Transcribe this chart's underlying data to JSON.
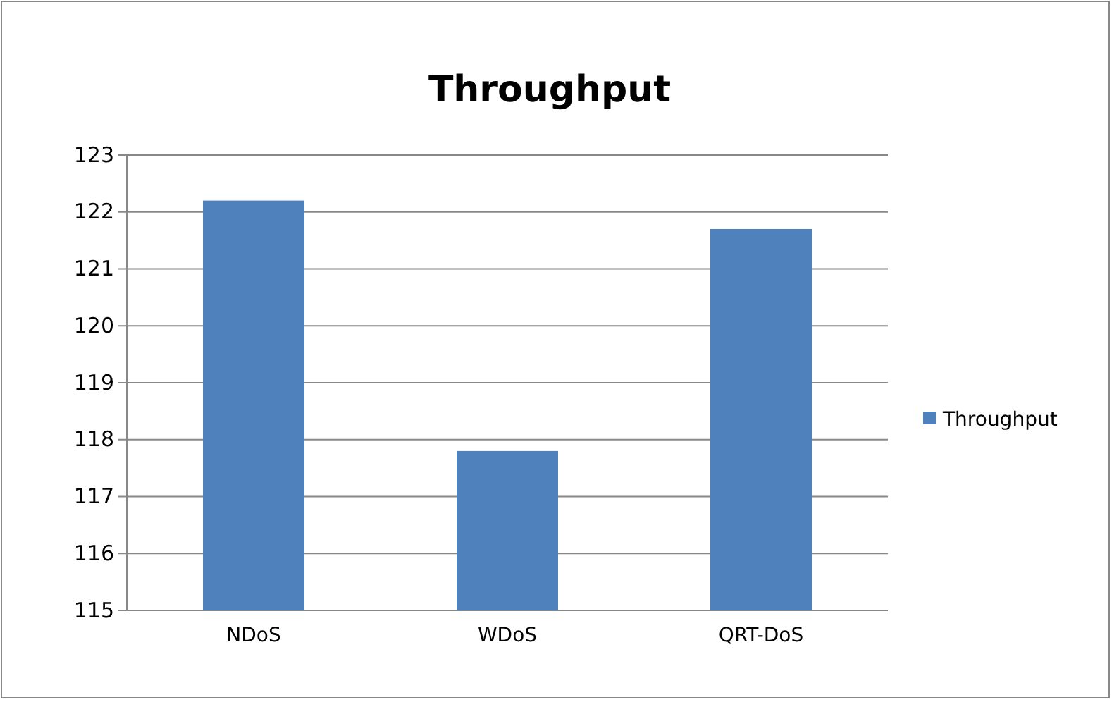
{
  "chart_data": {
    "type": "bar",
    "title": "Throughput",
    "categories": [
      "NDoS",
      "WDoS",
      "QRT-DoS"
    ],
    "series": [
      {
        "name": "Throughput",
        "color": "#4f81bd",
        "values": [
          122.2,
          117.8,
          121.7
        ]
      }
    ],
    "ylim": [
      115,
      123
    ],
    "yticks": [
      115,
      116,
      117,
      118,
      119,
      120,
      121,
      122,
      123
    ],
    "grid": "y",
    "legend": "right"
  }
}
